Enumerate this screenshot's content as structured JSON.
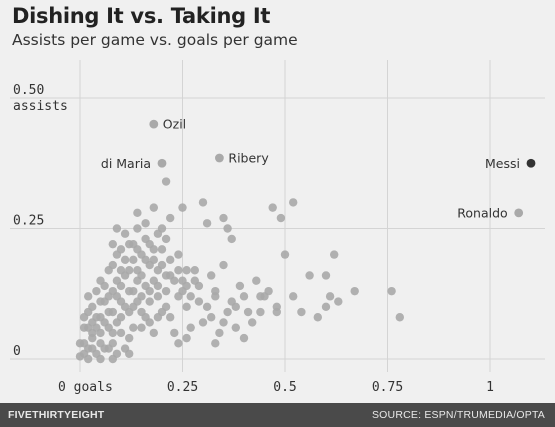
{
  "header": {
    "title": "Dishing It vs. Taking It",
    "subtitle": "Assists per game vs. goals per game"
  },
  "footer": {
    "brand": "FiveThirtyEight",
    "source": "SOURCE: ESPN/TRUMEDIA/OPTA"
  },
  "chart_data": {
    "type": "scatter",
    "title": "Dishing It vs. Taking It",
    "subtitle": "Assists per game vs. goals per game",
    "xlabel": "goals",
    "ylabel": "assists",
    "xlim": [
      -0.02,
      1.12
    ],
    "ylim": [
      -0.02,
      0.52
    ],
    "x_ticks": [
      {
        "value": 0,
        "label": "0 goals"
      },
      {
        "value": 0.25,
        "label": "0.25"
      },
      {
        "value": 0.5,
        "label": "0.5"
      },
      {
        "value": 0.75,
        "label": "0.75"
      },
      {
        "value": 1,
        "label": "1"
      }
    ],
    "y_ticks": [
      {
        "value": 0,
        "label": "0"
      },
      {
        "value": 0.25,
        "label": "0.25"
      },
      {
        "value": 0.5,
        "label": "0.50",
        "sublabel": "assists"
      }
    ],
    "grid": true,
    "colors": {
      "point": "#a9a9a9",
      "highlight": "#333333",
      "grid": "#d4d4d4"
    },
    "labeled_points": [
      {
        "name": "Ozil",
        "x": 0.18,
        "y": 0.45
      },
      {
        "name": "di Maria",
        "x": 0.2,
        "y": 0.375
      },
      {
        "name": "Ribery",
        "x": 0.34,
        "y": 0.385
      },
      {
        "name": "Messi",
        "x": 1.1,
        "y": 0.375,
        "highlight": true
      },
      {
        "name": "Ronaldo",
        "x": 1.07,
        "y": 0.28
      }
    ],
    "points": [
      [
        0.3,
        0.3
      ],
      [
        0.36,
        0.25
      ],
      [
        0.37,
        0.23
      ],
      [
        0.35,
        0.27
      ],
      [
        0.21,
        0.34
      ],
      [
        0.18,
        0.29
      ],
      [
        0.14,
        0.28
      ],
      [
        0.25,
        0.29
      ],
      [
        0.31,
        0.26
      ],
      [
        0.47,
        0.29
      ],
      [
        0.52,
        0.3
      ],
      [
        0.49,
        0.27
      ],
      [
        0.5,
        0.2
      ],
      [
        0.22,
        0.27
      ],
      [
        0.2,
        0.25
      ],
      [
        0.24,
        0.2
      ],
      [
        0.28,
        0.17
      ],
      [
        0.26,
        0.1
      ],
      [
        0.32,
        0.16
      ],
      [
        0.35,
        0.18
      ],
      [
        0.4,
        0.12
      ],
      [
        0.38,
        0.1
      ],
      [
        0.44,
        0.12
      ],
      [
        0.45,
        0.12
      ],
      [
        0.36,
        0.09
      ],
      [
        0.33,
        0.13
      ],
      [
        0.31,
        0.1
      ],
      [
        0.29,
        0.14
      ],
      [
        0.27,
        0.06
      ],
      [
        0.34,
        0.05
      ],
      [
        0.42,
        0.07
      ],
      [
        0.38,
        0.06
      ],
      [
        0.48,
        0.09
      ],
      [
        0.54,
        0.09
      ],
      [
        0.56,
        0.16
      ],
      [
        0.6,
        0.16
      ],
      [
        0.62,
        0.2
      ],
      [
        0.61,
        0.12
      ],
      [
        0.63,
        0.11
      ],
      [
        0.6,
        0.1
      ],
      [
        0.67,
        0.13
      ],
      [
        0.76,
        0.13
      ],
      [
        0.78,
        0.08
      ],
      [
        0.4,
        0.04
      ],
      [
        0.22,
        0.08
      ],
      [
        0.24,
        0.12
      ],
      [
        0.25,
        0.15
      ],
      [
        0.21,
        0.16
      ],
      [
        0.19,
        0.12
      ],
      [
        0.17,
        0.07
      ],
      [
        0.15,
        0.06
      ],
      [
        0.12,
        0.09
      ],
      [
        0.1,
        0.11
      ],
      [
        0.09,
        0.12
      ],
      [
        0.11,
        0.16
      ],
      [
        0.13,
        0.13
      ],
      [
        0.14,
        0.11
      ],
      [
        0.16,
        0.14
      ],
      [
        0.18,
        0.19
      ],
      [
        0.17,
        0.18
      ],
      [
        0.15,
        0.2
      ],
      [
        0.13,
        0.19
      ],
      [
        0.12,
        0.22
      ],
      [
        0.1,
        0.21
      ],
      [
        0.09,
        0.2
      ],
      [
        0.11,
        0.24
      ],
      [
        0.14,
        0.21
      ],
      [
        0.16,
        0.23
      ],
      [
        0.19,
        0.17
      ],
      [
        0.2,
        0.21
      ],
      [
        0.22,
        0.19
      ],
      [
        0.2,
        0.09
      ],
      [
        0.18,
        0.05
      ],
      [
        0.07,
        0.17
      ],
      [
        0.06,
        0.14
      ],
      [
        0.05,
        0.11
      ],
      [
        0.04,
        0.08
      ],
      [
        0.08,
        0.09
      ],
      [
        0.07,
        0.06
      ],
      [
        0.03,
        0.05
      ],
      [
        0.02,
        0.09
      ],
      [
        0.05,
        0.15
      ],
      [
        0.08,
        0.18
      ],
      [
        0.09,
        0.15
      ],
      [
        0.1,
        0.05
      ],
      [
        0.12,
        0.04
      ],
      [
        0.13,
        0.06
      ],
      [
        0.08,
        0.03
      ],
      [
        0.06,
        0.02
      ],
      [
        0.04,
        0.01
      ],
      [
        0.02,
        0.02
      ],
      [
        0.01,
        0.01
      ],
      [
        0.0,
        0.005
      ],
      [
        0.01,
        0.03
      ],
      [
        0.03,
        0.04
      ],
      [
        0.05,
        0.03
      ],
      [
        0.07,
        0.02
      ],
      [
        0.09,
        0.01
      ],
      [
        0.11,
        0.02
      ],
      [
        0.02,
        0.06
      ],
      [
        0.04,
        0.06
      ],
      [
        0.06,
        0.07
      ],
      [
        0.08,
        0.05
      ],
      [
        0.1,
        0.08
      ],
      [
        0.11,
        0.1
      ],
      [
        0.13,
        0.1
      ],
      [
        0.15,
        0.09
      ],
      [
        0.16,
        0.08
      ],
      [
        0.17,
        0.11
      ],
      [
        0.14,
        0.15
      ],
      [
        0.12,
        0.17
      ],
      [
        0.1,
        0.14
      ],
      [
        0.09,
        0.07
      ],
      [
        0.03,
        0.1
      ],
      [
        0.01,
        0.06
      ],
      [
        0.0,
        0.03
      ],
      [
        0.02,
        0.0
      ],
      [
        0.05,
        0.0
      ],
      [
        0.08,
        0.0
      ],
      [
        0.12,
        0.01
      ],
      [
        0.03,
        0.02
      ],
      [
        0.05,
        0.05
      ],
      [
        0.07,
        0.09
      ],
      [
        0.06,
        0.11
      ],
      [
        0.04,
        0.13
      ],
      [
        0.02,
        0.12
      ],
      [
        0.01,
        0.08
      ],
      [
        0.03,
        0.07
      ],
      [
        0.05,
        0.08
      ],
      [
        0.07,
        0.12
      ],
      [
        0.08,
        0.13
      ],
      [
        0.1,
        0.17
      ],
      [
        0.12,
        0.13
      ],
      [
        0.14,
        0.17
      ],
      [
        0.15,
        0.16
      ],
      [
        0.16,
        0.19
      ],
      [
        0.18,
        0.15
      ],
      [
        0.19,
        0.14
      ],
      [
        0.21,
        0.13
      ],
      [
        0.23,
        0.15
      ],
      [
        0.25,
        0.13
      ],
      [
        0.26,
        0.17
      ],
      [
        0.27,
        0.12
      ],
      [
        0.29,
        0.11
      ],
      [
        0.3,
        0.07
      ],
      [
        0.32,
        0.08
      ],
      [
        0.23,
        0.05
      ],
      [
        0.21,
        0.1
      ],
      [
        0.19,
        0.08
      ],
      [
        0.17,
        0.13
      ],
      [
        0.15,
        0.12
      ],
      [
        0.13,
        0.22
      ],
      [
        0.11,
        0.19
      ],
      [
        0.09,
        0.25
      ],
      [
        0.08,
        0.22
      ],
      [
        0.16,
        0.26
      ],
      [
        0.19,
        0.24
      ],
      [
        0.21,
        0.23
      ],
      [
        0.18,
        0.21
      ],
      [
        0.14,
        0.25
      ],
      [
        0.17,
        0.22
      ],
      [
        0.2,
        0.18
      ],
      [
        0.22,
        0.16
      ],
      [
        0.24,
        0.17
      ],
      [
        0.26,
        0.14
      ],
      [
        0.28,
        0.15
      ],
      [
        0.33,
        0.12
      ],
      [
        0.37,
        0.11
      ],
      [
        0.39,
        0.14
      ],
      [
        0.43,
        0.15
      ],
      [
        0.46,
        0.13
      ],
      [
        0.48,
        0.1
      ],
      [
        0.58,
        0.08
      ],
      [
        0.52,
        0.12
      ],
      [
        0.44,
        0.09
      ],
      [
        0.41,
        0.09
      ],
      [
        0.35,
        0.07
      ],
      [
        0.33,
        0.03
      ],
      [
        0.24,
        0.03
      ],
      [
        0.26,
        0.04
      ]
    ]
  }
}
